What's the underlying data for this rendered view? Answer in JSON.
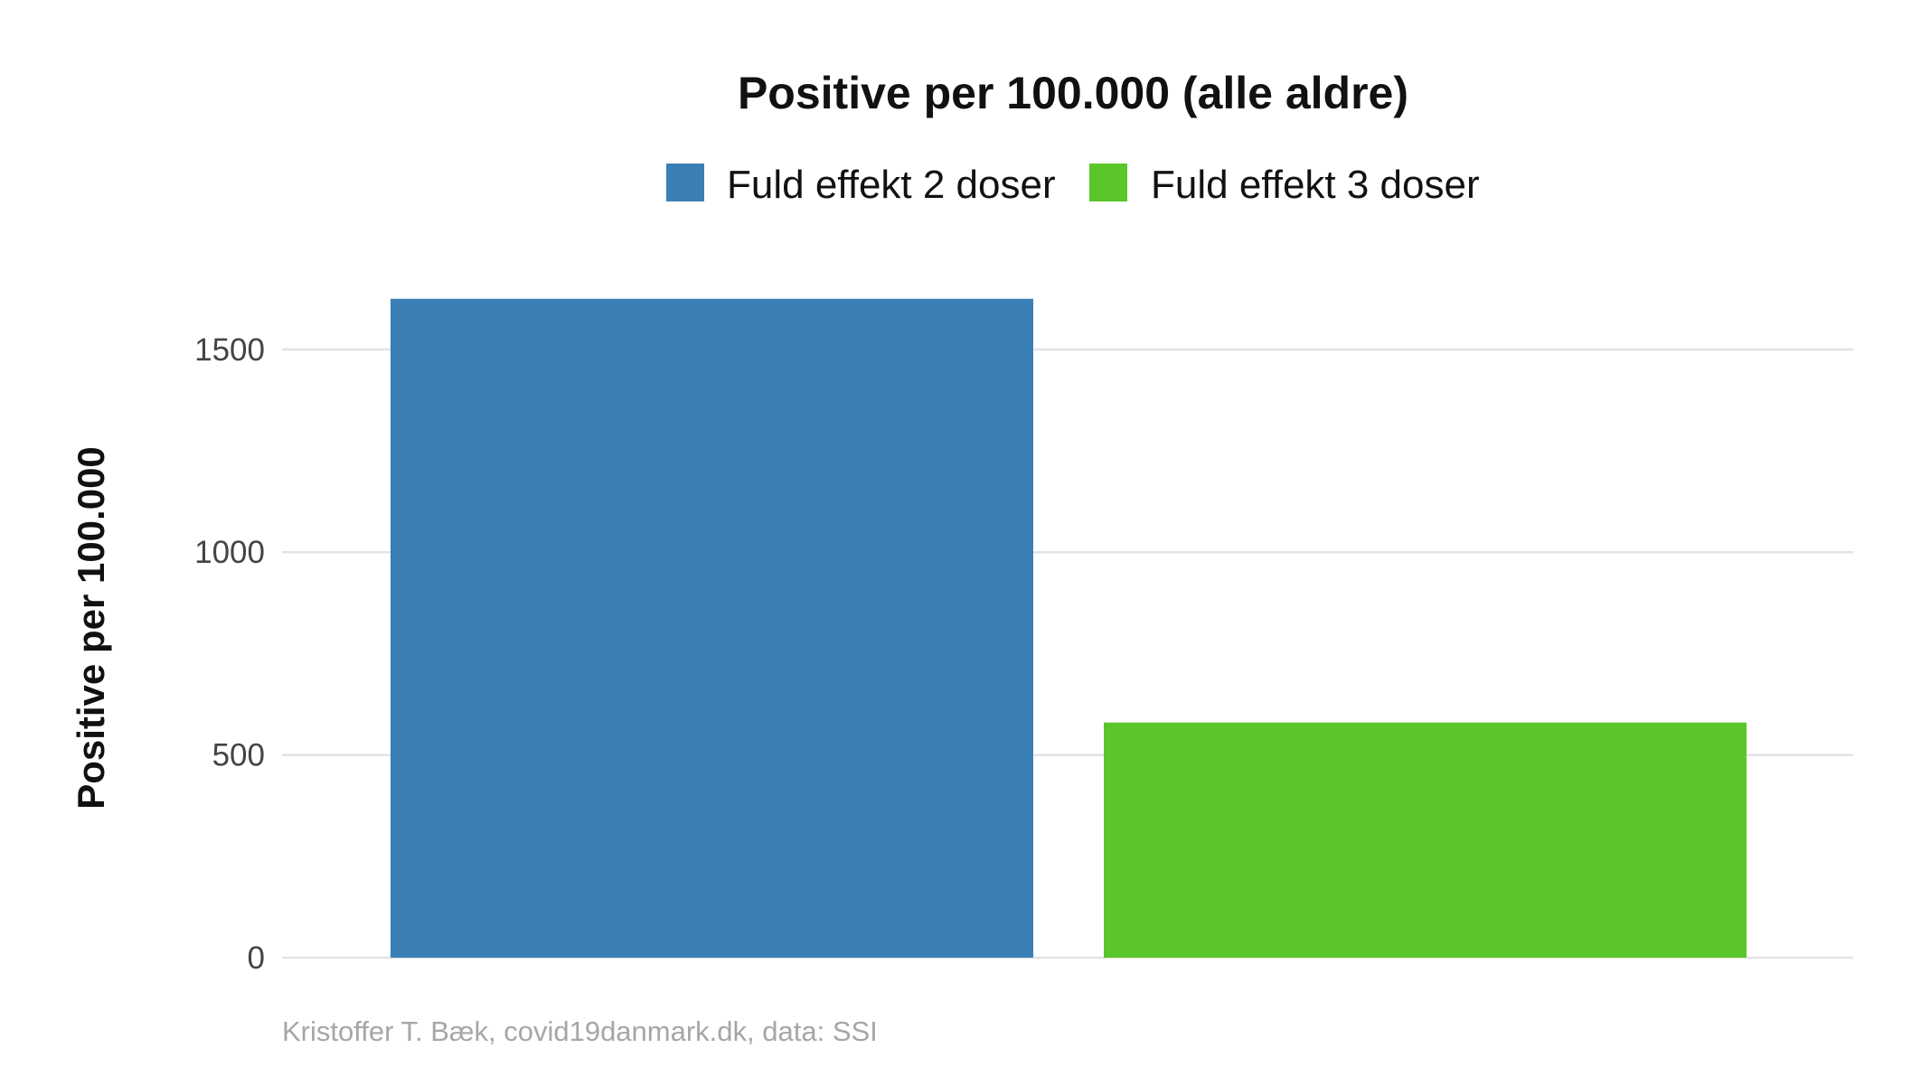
{
  "chart_data": {
    "type": "bar",
    "title": "Positive per 100.000 (alle aldre)",
    "xlabel": "",
    "ylabel": "Positive per 100.000",
    "caption": "Kristoffer T. Bæk, covid19danmark.dk, data: SSI",
    "ylim": [
      0,
      1700
    ],
    "yticks": [
      0,
      500,
      1000,
      1500
    ],
    "grid": true,
    "legend_position": "top",
    "series": [
      {
        "name": "Fuld effekt 2 doser",
        "color": "#3a7fb5",
        "value": 1625
      },
      {
        "name": "Fuld effekt 3 doser",
        "color": "#5ac62b",
        "value": 580
      }
    ]
  }
}
